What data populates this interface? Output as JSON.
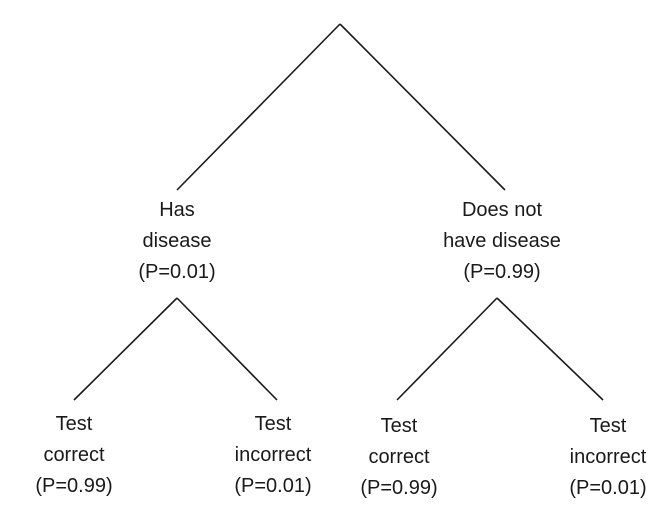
{
  "tree": {
    "level1": [
      {
        "lines": [
          "Has",
          "disease",
          "(P=0.01)"
        ]
      },
      {
        "lines": [
          "Does not",
          "have disease",
          "(P=0.99)"
        ]
      }
    ],
    "level2": [
      {
        "lines": [
          "Test",
          "correct",
          "(P=0.99)"
        ]
      },
      {
        "lines": [
          "Test",
          "incorrect",
          "(P=0.01)"
        ]
      },
      {
        "lines": [
          "Test",
          "correct",
          "(P=0.99)"
        ]
      },
      {
        "lines": [
          "Test",
          "incorrect",
          "(P=0.01)"
        ]
      }
    ]
  },
  "colors": {
    "line": "#1a1a1a",
    "text": "#1a1a1a",
    "background": "#ffffff"
  }
}
